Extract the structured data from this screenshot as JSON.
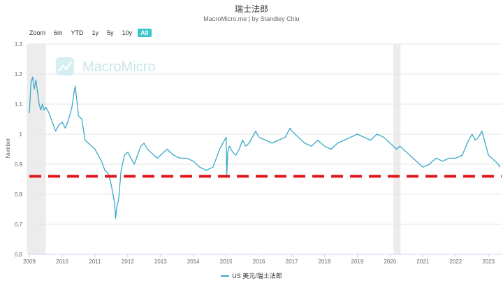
{
  "chart_data": {
    "type": "line",
    "title": "瑞士法郎",
    "subtitle": "MacroMicro.me | by Standley Chiu",
    "ylabel": "Number",
    "xlabel": "",
    "ylim": [
      0.6,
      1.3
    ],
    "y_ticks": [
      "0.6",
      "0.7",
      "0.8",
      "0.9",
      "1",
      "1.1",
      "1.2",
      "1.3"
    ],
    "x_ticks": [
      "2009",
      "2010",
      "2011",
      "2012",
      "2013",
      "2014",
      "2015",
      "2016",
      "2017",
      "2018",
      "2019",
      "2020",
      "2021",
      "2022",
      "2023"
    ],
    "xlim": [
      2009.0,
      2023.4
    ],
    "grid": true,
    "legend_position": "bottom",
    "reference_line": {
      "value": 0.86,
      "style": "dashed",
      "color": "#e0161b"
    },
    "recession_bands": [
      [
        2008.92,
        2009.5
      ],
      [
        2020.1,
        2020.32
      ]
    ],
    "series": [
      {
        "name": "US 美元/瑞士法郎",
        "color": "#39a9c9",
        "x": [
          2009.0,
          2009.05,
          2009.1,
          2009.15,
          2009.2,
          2009.25,
          2009.3,
          2009.35,
          2009.4,
          2009.45,
          2009.5,
          2009.6,
          2009.7,
          2009.8,
          2009.9,
          2010.0,
          2010.1,
          2010.2,
          2010.3,
          2010.35,
          2010.4,
          2010.45,
          2010.5,
          2010.6,
          2010.7,
          2010.8,
          2010.9,
          2011.0,
          2011.1,
          2011.2,
          2011.3,
          2011.4,
          2011.5,
          2011.55,
          2011.6,
          2011.63,
          2011.67,
          2011.72,
          2011.8,
          2011.9,
          2012.0,
          2012.1,
          2012.2,
          2012.3,
          2012.4,
          2012.5,
          2012.6,
          2012.7,
          2012.8,
          2012.9,
          2013.0,
          2013.2,
          2013.4,
          2013.6,
          2013.8,
          2014.0,
          2014.2,
          2014.4,
          2014.6,
          2014.8,
          2014.9,
          2015.0,
          2015.02,
          2015.05,
          2015.1,
          2015.2,
          2015.3,
          2015.4,
          2015.5,
          2015.6,
          2015.7,
          2015.8,
          2015.9,
          2016.0,
          2016.2,
          2016.4,
          2016.6,
          2016.8,
          2016.95,
          2017.0,
          2017.2,
          2017.4,
          2017.6,
          2017.8,
          2018.0,
          2018.2,
          2018.4,
          2018.6,
          2018.8,
          2019.0,
          2019.2,
          2019.4,
          2019.6,
          2019.8,
          2020.0,
          2020.1,
          2020.2,
          2020.3,
          2020.5,
          2020.7,
          2020.9,
          2021.0,
          2021.2,
          2021.4,
          2021.6,
          2021.8,
          2022.0,
          2022.2,
          2022.35,
          2022.5,
          2022.6,
          2022.7,
          2022.8,
          2022.9,
          2023.0,
          2023.1,
          2023.2,
          2023.3,
          2023.35
        ],
        "values": [
          1.07,
          1.17,
          1.19,
          1.15,
          1.18,
          1.14,
          1.1,
          1.08,
          1.1,
          1.08,
          1.09,
          1.07,
          1.04,
          1.01,
          1.03,
          1.04,
          1.02,
          1.05,
          1.09,
          1.13,
          1.16,
          1.11,
          1.06,
          1.05,
          0.98,
          0.97,
          0.96,
          0.95,
          0.93,
          0.91,
          0.88,
          0.87,
          0.83,
          0.8,
          0.77,
          0.72,
          0.76,
          0.78,
          0.88,
          0.93,
          0.94,
          0.92,
          0.9,
          0.93,
          0.96,
          0.97,
          0.95,
          0.94,
          0.93,
          0.92,
          0.93,
          0.95,
          0.93,
          0.92,
          0.92,
          0.91,
          0.89,
          0.88,
          0.89,
          0.95,
          0.97,
          0.99,
          0.86,
          0.94,
          0.96,
          0.94,
          0.93,
          0.95,
          0.98,
          0.96,
          0.97,
          0.99,
          1.01,
          0.99,
          0.98,
          0.97,
          0.98,
          0.99,
          1.02,
          1.01,
          0.99,
          0.97,
          0.96,
          0.98,
          0.96,
          0.95,
          0.97,
          0.98,
          0.99,
          1.0,
          0.99,
          0.98,
          1.0,
          0.99,
          0.97,
          0.96,
          0.95,
          0.96,
          0.94,
          0.92,
          0.9,
          0.89,
          0.9,
          0.92,
          0.91,
          0.92,
          0.92,
          0.93,
          0.97,
          1.0,
          0.98,
          0.99,
          1.01,
          0.97,
          0.93,
          0.92,
          0.91,
          0.9,
          0.89
        ]
      }
    ]
  },
  "toolbar": {
    "zoom_label": "Zoom",
    "buttons": [
      "6m",
      "YTD",
      "1y",
      "5y",
      "10y",
      "All"
    ],
    "active": "All"
  },
  "watermark": {
    "text": "MacroMicro"
  },
  "legend": {
    "label": "US 美元/瑞士法郎"
  }
}
